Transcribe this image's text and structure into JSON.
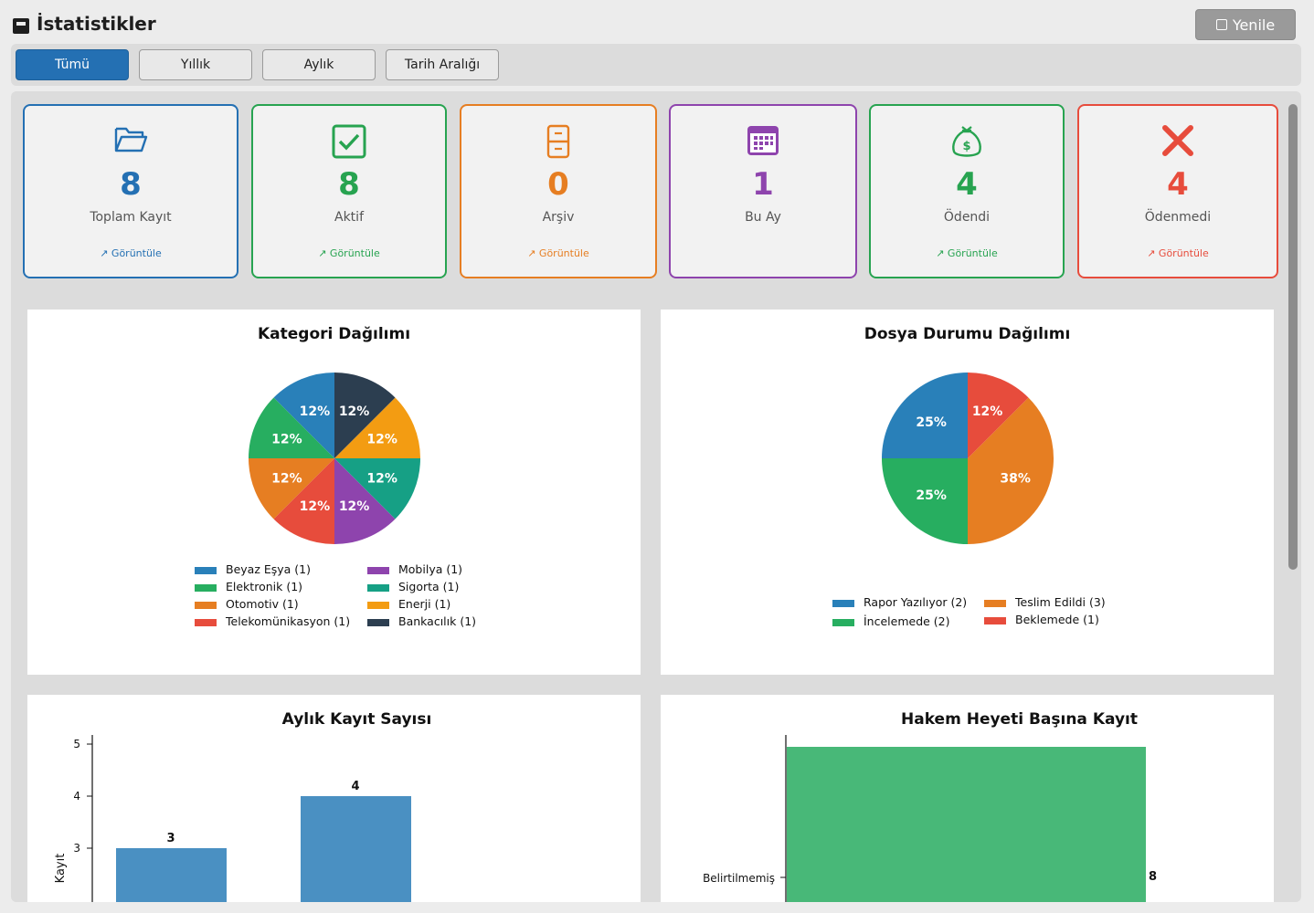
{
  "window": {
    "title": "İstatistikler",
    "refresh_label": "Yenile"
  },
  "tabs": [
    {
      "label": "Tümü",
      "active": true
    },
    {
      "label": "Yıllık",
      "active": false
    },
    {
      "label": "Aylık",
      "active": false
    },
    {
      "label": "Tarih Aralığı",
      "active": false
    }
  ],
  "cards": [
    {
      "value": "8",
      "label": "Toplam Kayıt",
      "link": "↗ Görüntüle",
      "color": "#2470b3",
      "icon": "folder-open-icon"
    },
    {
      "value": "8",
      "label": "Aktif",
      "link": "↗ Görüntüle",
      "color": "#27a350",
      "icon": "check-box-icon"
    },
    {
      "value": "0",
      "label": "Arşiv",
      "link": "↗ Görüntüle",
      "color": "#e67e22",
      "icon": "archive-cabinet-icon"
    },
    {
      "value": "1",
      "label": "Bu Ay",
      "link": "",
      "color": "#8e44ad",
      "icon": "calendar-icon"
    },
    {
      "value": "4",
      "label": "Ödendi",
      "link": "↗ Görüntüle",
      "color": "#27a350",
      "icon": "money-bag-icon"
    },
    {
      "value": "4",
      "label": "Ödenmedi",
      "link": "↗ Görüntüle",
      "color": "#e74c3c",
      "icon": "close-x-icon"
    }
  ],
  "chart_data": [
    {
      "type": "pie",
      "title": "Kategori Dağılımı",
      "slices": [
        {
          "label": "Beyaz Eşya (1)",
          "value": 1,
          "pct_label": "12%",
          "color": "#2980b9"
        },
        {
          "label": "Elektronik (1)",
          "value": 1,
          "pct_label": "12%",
          "color": "#27ae60"
        },
        {
          "label": "Otomotiv (1)",
          "value": 1,
          "pct_label": "12%",
          "color": "#e67e22"
        },
        {
          "label": "Telekomünikasyon (1)",
          "value": 1,
          "pct_label": "12%",
          "color": "#e74c3c"
        },
        {
          "label": "Mobilya (1)",
          "value": 1,
          "pct_label": "12%",
          "color": "#8e44ad"
        },
        {
          "label": "Sigorta (1)",
          "value": 1,
          "pct_label": "12%",
          "color": "#16a085"
        },
        {
          "label": "Enerji (1)",
          "value": 1,
          "pct_label": "12%",
          "color": "#f39c12"
        },
        {
          "label": "Bankacılık (1)",
          "value": 1,
          "pct_label": "12%",
          "color": "#2c3e50"
        }
      ]
    },
    {
      "type": "pie",
      "title": "Dosya Durumu Dağılımı",
      "slices": [
        {
          "label": "Rapor Yazılıyor (2)",
          "value": 2,
          "pct_label": "25%",
          "color": "#2980b9"
        },
        {
          "label": "İncelemede (2)",
          "value": 2,
          "pct_label": "25%",
          "color": "#27ae60"
        },
        {
          "label": "Teslim Edildi (3)",
          "value": 3,
          "pct_label": "38%",
          "color": "#e67e22"
        },
        {
          "label": "Beklemede (1)",
          "value": 1,
          "pct_label": "12%",
          "color": "#e74c3c"
        }
      ]
    },
    {
      "type": "bar",
      "title": "Aylık Kayıt Sayısı",
      "ylabel": "Kayıt",
      "values": [
        3,
        4
      ],
      "yticks": [
        3,
        4,
        5
      ],
      "ylim": [
        2,
        5.2
      ],
      "color": "#4a90c2"
    },
    {
      "type": "bar",
      "orientation": "horizontal",
      "title": "Hakem Heyeti Başına Kayıt",
      "categories": [
        "Belirtilmemiş"
      ],
      "values": [
        8
      ],
      "color": "#48b878"
    }
  ]
}
